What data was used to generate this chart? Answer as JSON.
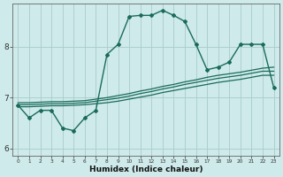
{
  "xlabel": "Humidex (Indice chaleur)",
  "background_color": "#ceeaea",
  "grid_color": "#aacccc",
  "line_color": "#1a6b5a",
  "xlim_min": -0.5,
  "xlim_max": 23.5,
  "ylim_min": 5.85,
  "ylim_max": 8.85,
  "yticks": [
    6,
    7,
    8
  ],
  "xticks": [
    0,
    1,
    2,
    3,
    4,
    5,
    6,
    7,
    8,
    9,
    10,
    11,
    12,
    13,
    14,
    15,
    16,
    17,
    18,
    19,
    20,
    21,
    22,
    23
  ],
  "series": [
    {
      "x": [
        0,
        1,
        2,
        3,
        4,
        5,
        6,
        7,
        8,
        9,
        10,
        11,
        12,
        13,
        14,
        15,
        16,
        17,
        18,
        19,
        20,
        21,
        22,
        23
      ],
      "y": [
        6.85,
        6.6,
        6.75,
        6.75,
        6.4,
        6.35,
        6.6,
        6.75,
        7.85,
        8.05,
        8.6,
        8.62,
        8.62,
        8.72,
        8.62,
        8.5,
        8.05,
        7.55,
        7.6,
        7.7,
        8.05,
        8.05,
        8.05,
        7.2
      ],
      "marker": "D",
      "markersize": 2.0,
      "linewidth": 1.0
    },
    {
      "x": [
        0,
        1,
        2,
        3,
        4,
        5,
        6,
        7,
        8,
        9,
        10,
        11,
        12,
        13,
        14,
        15,
        16,
        17,
        18,
        19,
        20,
        21,
        22,
        23
      ],
      "y": [
        6.82,
        6.82,
        6.83,
        6.84,
        6.84,
        6.85,
        6.86,
        6.88,
        6.9,
        6.93,
        6.97,
        7.01,
        7.05,
        7.1,
        7.14,
        7.18,
        7.22,
        7.26,
        7.3,
        7.33,
        7.36,
        7.4,
        7.44,
        7.44
      ],
      "marker": null,
      "linewidth": 0.9
    },
    {
      "x": [
        0,
        1,
        2,
        3,
        4,
        5,
        6,
        7,
        8,
        9,
        10,
        11,
        12,
        13,
        14,
        15,
        16,
        17,
        18,
        19,
        20,
        21,
        22,
        23
      ],
      "y": [
        6.86,
        6.86,
        6.87,
        6.88,
        6.88,
        6.89,
        6.9,
        6.93,
        6.96,
        6.99,
        7.03,
        7.08,
        7.12,
        7.17,
        7.21,
        7.26,
        7.3,
        7.34,
        7.38,
        7.41,
        7.44,
        7.48,
        7.52,
        7.52
      ],
      "marker": null,
      "linewidth": 0.9
    },
    {
      "x": [
        0,
        1,
        2,
        3,
        4,
        5,
        6,
        7,
        8,
        9,
        10,
        11,
        12,
        13,
        14,
        15,
        16,
        17,
        18,
        19,
        20,
        21,
        22,
        23
      ],
      "y": [
        6.9,
        6.9,
        6.91,
        6.92,
        6.92,
        6.93,
        6.94,
        6.97,
        7.0,
        7.04,
        7.08,
        7.13,
        7.17,
        7.22,
        7.26,
        7.31,
        7.35,
        7.4,
        7.44,
        7.47,
        7.5,
        7.54,
        7.58,
        7.6
      ],
      "marker": null,
      "linewidth": 0.9
    }
  ]
}
